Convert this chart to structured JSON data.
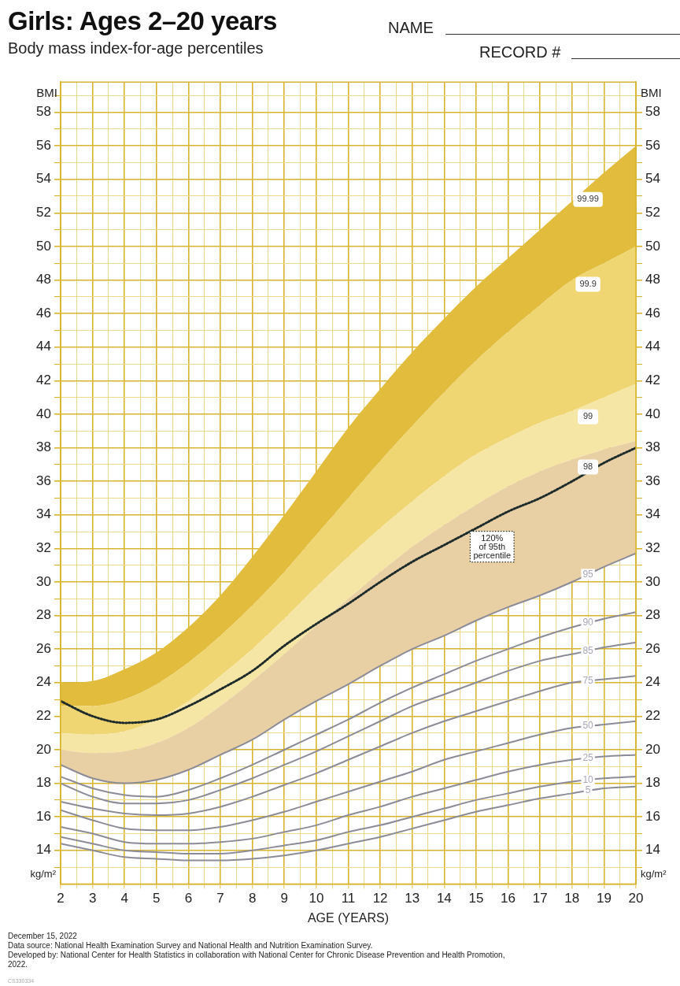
{
  "chart_data": {
    "type": "line",
    "title": "Girls: Ages 2–20 years",
    "subtitle": "Body mass index-for-age percentiles",
    "xlabel": "AGE (YEARS)",
    "ylabel": "BMI",
    "y2label": "BMI",
    "annotations": [
      "NAME",
      "RECORD #",
      "kg/m²",
      "kg/m²",
      "December 15, 2022",
      "Data source: National Health Examination Survey and National Health and Nutrition Examination Survey.",
      "Developed by: National Center for Health Statistics in collaboration with National Center for Chronic Disease Prevention and Health Promotion, 2022.",
      "CS330334"
    ],
    "x": [
      2,
      3,
      4,
      5,
      6,
      7,
      8,
      9,
      10,
      11,
      12,
      13,
      14,
      15,
      16,
      17,
      18,
      19,
      20
    ],
    "xlim": [
      2,
      20
    ],
    "xticks": [
      2,
      {
        "value": 2.5,
        "label": null
      },
      3,
      {
        "value": 3.5,
        "label": null
      },
      4,
      {
        "value": 4.5,
        "label": null
      },
      5,
      {
        "value": 5.5,
        "label": null
      },
      6,
      {
        "value": 6.5,
        "label": null
      },
      7,
      {
        "value": 7.5,
        "label": null
      },
      8,
      {
        "value": 8.5,
        "label": null
      },
      9,
      {
        "value": 9.5,
        "label": null
      },
      10,
      {
        "value": 10.5,
        "label": null
      },
      11,
      {
        "value": 11.5,
        "label": null
      },
      12,
      {
        "value": 12.5,
        "label": null
      },
      13,
      {
        "value": 13.5,
        "label": null
      },
      14,
      {
        "value": 14.5,
        "label": null
      },
      15,
      {
        "value": 15.5,
        "label": null
      },
      16,
      {
        "value": 16.5,
        "label": null
      },
      17,
      {
        "value": 17.5,
        "label": null
      },
      18,
      {
        "value": 18.5,
        "label": null
      },
      19,
      {
        "value": 19.5,
        "label": null
      },
      20
    ],
    "ylim": [
      12,
      59.8
    ],
    "yticks": [
      {
        "value": 13,
        "label": null
      },
      14,
      {
        "value": 15,
        "label": null
      },
      16,
      {
        "value": 17,
        "label": null
      },
      18,
      {
        "value": 19,
        "label": null
      },
      20,
      {
        "value": 21,
        "label": null
      },
      22,
      {
        "value": 23,
        "label": null
      },
      24,
      {
        "value": 25,
        "label": null
      },
      26,
      {
        "value": 27,
        "label": null
      },
      28,
      {
        "value": 29,
        "label": null
      },
      30,
      {
        "value": 31,
        "label": null
      },
      32,
      {
        "value": 33,
        "label": null
      },
      34,
      {
        "value": 35,
        "label": null
      },
      36,
      {
        "value": 37,
        "label": null
      },
      38,
      {
        "value": 39,
        "label": null
      },
      40,
      {
        "value": 41,
        "label": null
      },
      42,
      {
        "value": 43,
        "label": null
      },
      44,
      {
        "value": 45,
        "label": null
      },
      46,
      {
        "value": 47,
        "label": null
      },
      48,
      {
        "value": 49,
        "label": null
      },
      50,
      {
        "value": 51,
        "label": null
      },
      52,
      {
        "value": 53,
        "label": null
      },
      54,
      {
        "value": 55,
        "label": null
      },
      56,
      {
        "value": 57,
        "label": null
      },
      58,
      {
        "value": 59,
        "label": null
      }
    ],
    "y2lim": [
      12,
      59.8
    ],
    "y2ticks": [
      {
        "value": 13,
        "label": null
      },
      14,
      {
        "value": 15,
        "label": null
      },
      16,
      {
        "value": 17,
        "label": null
      },
      18,
      {
        "value": 19,
        "label": null
      },
      20,
      {
        "value": 21,
        "label": null
      },
      22,
      {
        "value": 23,
        "label": null
      },
      24,
      {
        "value": 25,
        "label": null
      },
      26,
      {
        "value": 27,
        "label": null
      },
      28,
      {
        "value": 29,
        "label": null
      },
      30,
      {
        "value": 31,
        "label": null
      },
      32,
      {
        "value": 33,
        "label": null
      },
      34,
      {
        "value": 35,
        "label": null
      },
      36,
      {
        "value": 37,
        "label": null
      },
      38,
      {
        "value": 39,
        "label": null
      },
      40,
      {
        "value": 41,
        "label": null
      },
      42,
      {
        "value": 43,
        "label": null
      },
      44,
      {
        "value": 45,
        "label": null
      },
      46,
      {
        "value": 47,
        "label": null
      },
      48,
      {
        "value": 49,
        "label": null
      },
      50,
      {
        "value": 51,
        "label": null
      },
      52,
      {
        "value": 53,
        "label": null
      },
      54,
      {
        "value": 55,
        "label": null
      },
      56,
      {
        "value": 57,
        "label": null
      },
      58,
      {
        "value": 59,
        "label": null
      }
    ],
    "grid": true,
    "marker": "none",
    "legend": false,
    "line_style": "solid",
    "series": [
      {
        "name": "5",
        "color": "#8c8c99",
        "values": [
          14.4,
          14.0,
          13.6,
          13.5,
          13.4,
          13.4,
          13.5,
          13.7,
          14.0,
          14.4,
          14.8,
          15.3,
          15.8,
          16.3,
          16.7,
          17.1,
          17.4,
          17.7,
          17.8
        ]
      },
      {
        "name": "10",
        "color": "#8c8c99",
        "values": [
          14.8,
          14.4,
          14.0,
          13.9,
          13.8,
          13.8,
          14.0,
          14.3,
          14.6,
          15.1,
          15.5,
          16.0,
          16.5,
          17.0,
          17.4,
          17.8,
          18.1,
          18.3,
          18.4
        ]
      },
      {
        "name": "25",
        "color": "#8c8c99",
        "values": [
          15.4,
          15.0,
          14.5,
          14.4,
          14.4,
          14.5,
          14.7,
          15.1,
          15.5,
          16.1,
          16.6,
          17.2,
          17.7,
          18.2,
          18.7,
          19.1,
          19.4,
          19.6,
          19.7
        ]
      },
      {
        "name": "50",
        "color": "#8c8c99",
        "values": [
          16.4,
          15.8,
          15.3,
          15.2,
          15.2,
          15.4,
          15.8,
          16.3,
          16.9,
          17.5,
          18.1,
          18.7,
          19.4,
          19.9,
          20.4,
          20.9,
          21.3,
          21.5,
          21.7
        ]
      },
      {
        "name": "75",
        "color": "#8c8c99",
        "values": [
          16.9,
          16.5,
          16.2,
          16.1,
          16.2,
          16.6,
          17.2,
          17.9,
          18.6,
          19.4,
          20.2,
          21.0,
          21.7,
          22.3,
          22.9,
          23.5,
          24.0,
          24.2,
          24.4
        ]
      },
      {
        "name": "85",
        "color": "#8c8c99",
        "values": [
          18.0,
          17.2,
          16.8,
          16.8,
          17.0,
          17.6,
          18.3,
          19.1,
          19.9,
          20.8,
          21.7,
          22.6,
          23.3,
          24.0,
          24.7,
          25.3,
          25.7,
          26.1,
          26.4
        ]
      },
      {
        "name": "90",
        "color": "#8c8c99",
        "values": [
          18.4,
          17.7,
          17.3,
          17.2,
          17.6,
          18.3,
          19.1,
          20.0,
          20.9,
          21.8,
          22.8,
          23.7,
          24.5,
          25.3,
          26.0,
          26.7,
          27.3,
          27.8,
          28.2
        ]
      },
      {
        "name": "95",
        "color": "#8c8c99",
        "values": [
          19.1,
          18.3,
          18.0,
          18.2,
          18.8,
          19.7,
          20.6,
          21.8,
          22.9,
          23.9,
          25.0,
          26.0,
          26.8,
          27.7,
          28.5,
          29.2,
          30.0,
          30.9,
          31.7
        ]
      },
      {
        "name": "98",
        "type": "area",
        "color": "#e9d0a4",
        "values": [
          20.0,
          19.8,
          19.9,
          20.4,
          21.3,
          22.6,
          24.1,
          25.7,
          27.4,
          29.0,
          30.6,
          32.1,
          33.4,
          34.6,
          35.7,
          36.6,
          37.3,
          37.9,
          38.4
        ]
      },
      {
        "name": "99",
        "type": "area",
        "color": "#f6e6a6",
        "values": [
          21.0,
          20.9,
          21.1,
          21.8,
          22.9,
          24.4,
          26.0,
          27.8,
          29.7,
          31.5,
          33.2,
          34.8,
          36.3,
          37.6,
          38.6,
          39.5,
          40.2,
          41.0,
          41.8
        ]
      },
      {
        "name": "99.9",
        "type": "area",
        "color": "#efd673",
        "values": [
          22.6,
          22.6,
          23.0,
          23.9,
          25.2,
          26.8,
          28.6,
          30.6,
          32.8,
          35.0,
          37.2,
          39.3,
          41.3,
          43.2,
          44.9,
          46.5,
          48.0,
          49.0,
          50.0
        ]
      },
      {
        "name": "99.99",
        "type": "area",
        "color": "#e2bc3c",
        "values": [
          24.0,
          24.1,
          24.8,
          25.8,
          27.3,
          29.2,
          31.5,
          34.0,
          36.6,
          39.2,
          41.5,
          43.7,
          45.7,
          47.6,
          49.3,
          51.0,
          52.7,
          54.4,
          56.0
        ]
      },
      {
        "name": "120% of 95th percentile",
        "color": "#1e2b2b",
        "line_style": "dotted",
        "values": [
          22.9,
          22.0,
          21.6,
          21.8,
          22.6,
          23.6,
          24.7,
          26.2,
          27.5,
          28.7,
          30.0,
          31.2,
          32.2,
          33.2,
          34.2,
          35.0,
          36.0,
          37.1,
          38.0
        ]
      }
    ]
  }
}
